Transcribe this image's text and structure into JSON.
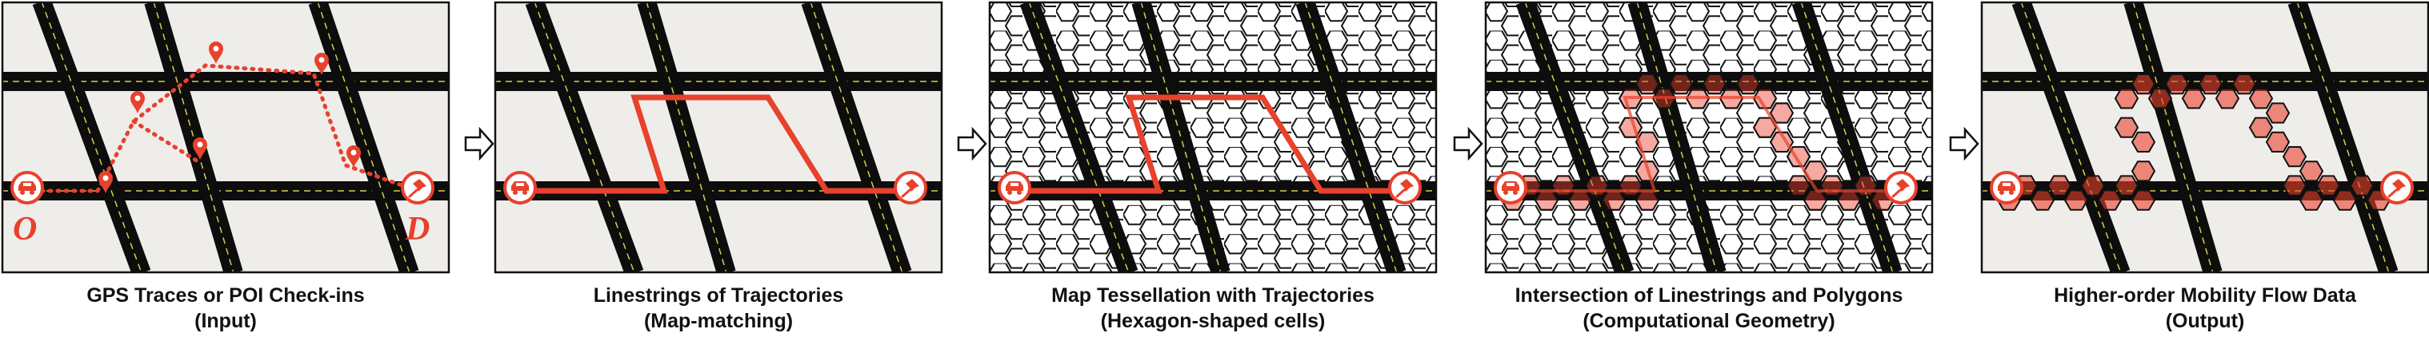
{
  "panels": [
    {
      "title": "GPS Traces or POI Check-ins",
      "subtitle": "(Input)"
    },
    {
      "title": "Linestrings of Trajectories",
      "subtitle": "(Map-matching)"
    },
    {
      "title": "Map Tessellation with Trajectories",
      "subtitle": "(Hexagon-shaped cells)"
    },
    {
      "title": "Intersection of Linestrings and Polygons",
      "subtitle": "(Computational Geometry)"
    },
    {
      "title": "Higher-order Mobility Flow Data",
      "subtitle": "(Output)"
    }
  ],
  "origin_label": "O",
  "destination_label": "D",
  "colors": {
    "map_bg": "#efedea",
    "road": "#0d0d0d",
    "lane_marking": "#d8cf4a",
    "trajectory": "#e8412c",
    "hex_fill": "#e8412c",
    "arrow": "#ffffff"
  },
  "icons": {
    "origin": "car-icon",
    "destination": "pushpin-icon",
    "checkin": "map-pin-icon",
    "flow": "hollow-arrow-icon"
  }
}
